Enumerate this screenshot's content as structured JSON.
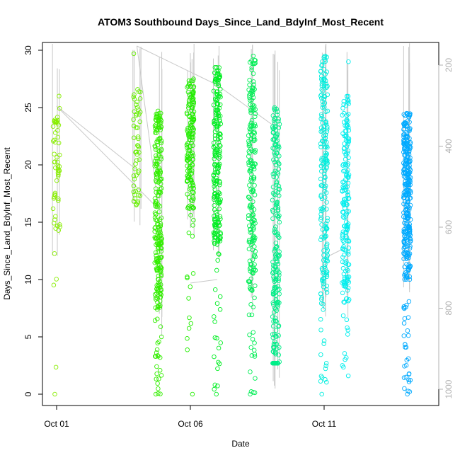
{
  "chart_data": {
    "type": "scatter",
    "title": "ATOM3 Southbound Days_Since_Land_BdyInf_Most_Recent",
    "xlabel": "Date",
    "ylabel": "Days_Since_Land_BdyInf_Most_Recent",
    "x_ticks": [
      {
        "label": "Oct 01",
        "value": "2016-10-01"
      },
      {
        "label": "Oct 06",
        "value": "2016-10-06"
      },
      {
        "label": "Oct 11",
        "value": "2016-10-11"
      }
    ],
    "xlim": [
      "2016-10-01",
      "2016-10-15"
    ],
    "ylim": [
      0,
      30
    ],
    "y_ticks": [
      0,
      5,
      10,
      15,
      20,
      25,
      30
    ],
    "secondary_axis": {
      "ticks": [
        200,
        400,
        600,
        800,
        1000
      ],
      "range": [
        100,
        1050
      ],
      "color": "#b0b0b0"
    },
    "grid": false,
    "marker": "open-circle",
    "depth_trace_color": "#c8c8c8",
    "clusters": [
      {
        "date": "2016-10-01",
        "color": "#88ee00",
        "min": 0,
        "max": 26,
        "dense_min": 14,
        "dense_max": 25,
        "n": 60
      },
      {
        "date": "2016-10-04",
        "color": "#66ee00",
        "min": 16.5,
        "max": 29.7,
        "dense_min": 17,
        "dense_max": 27,
        "n": 55
      },
      {
        "date": "2016-10-04.8",
        "color": "#33ee00",
        "min": 0,
        "max": 24.7,
        "dense_min": 7.5,
        "dense_max": 24.7,
        "n": 260
      },
      {
        "date": "2016-10-06",
        "color": "#22ee00",
        "min": 0,
        "max": 27.5,
        "dense_min": 16,
        "dense_max": 27.5,
        "n": 170
      },
      {
        "date": "2016-10-07",
        "color": "#00ee22",
        "min": 0,
        "max": 28.5,
        "dense_min": 13,
        "dense_max": 28.5,
        "n": 230
      },
      {
        "date": "2016-10-08.3",
        "color": "#00ee55",
        "min": 0,
        "max": 29.5,
        "dense_min": 9,
        "dense_max": 29.5,
        "n": 210
      },
      {
        "date": "2016-10-09.2",
        "color": "#00ee88",
        "min": 2.7,
        "max": 25,
        "dense_min": 2.7,
        "dense_max": 25,
        "n": 230
      },
      {
        "date": "2016-10-11",
        "color": "#00eedd",
        "min": 0,
        "max": 29.5,
        "dense_min": 8.5,
        "dense_max": 29.5,
        "n": 200
      },
      {
        "date": "2016-10-11.8",
        "color": "#00eeee",
        "min": 1.6,
        "max": 29,
        "dense_min": 9,
        "dense_max": 26,
        "n": 190
      },
      {
        "date": "2016-10-14.1",
        "color": "#00aaff",
        "min": 0,
        "max": 24.5,
        "dense_min": 10,
        "dense_max": 24.5,
        "n": 320
      }
    ]
  }
}
